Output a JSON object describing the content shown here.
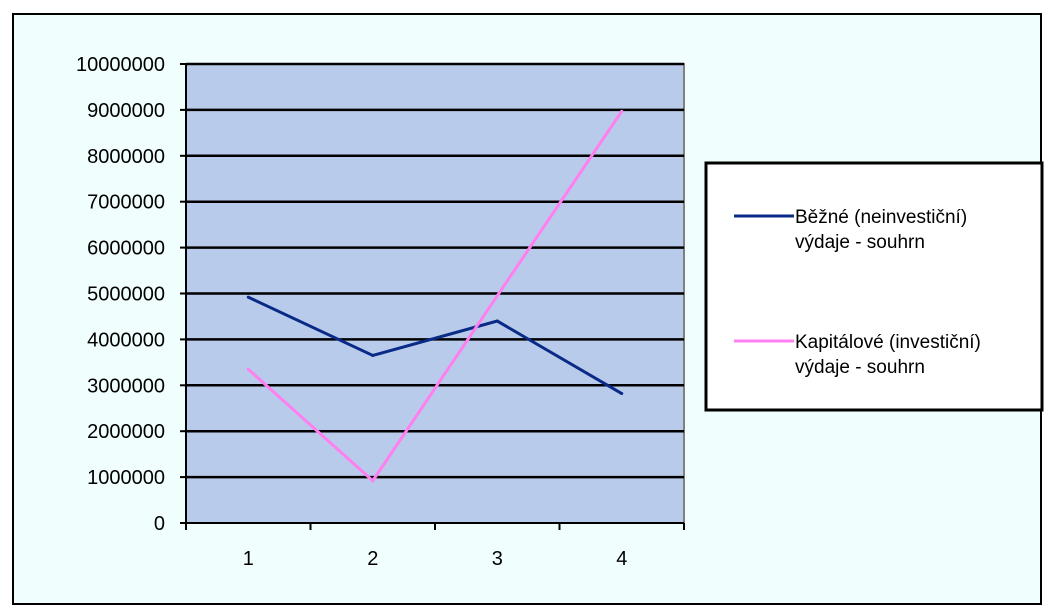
{
  "colors": {
    "chart_background": "#f1fefe",
    "plot_background": "#b9cbea",
    "gridline": "#000000",
    "series_1": "#0a2a88",
    "series_2": "#ff7ff0"
  },
  "chart_data": {
    "type": "line",
    "title": "",
    "xlabel": "",
    "ylabel": "",
    "categories": [
      "1",
      "2",
      "3",
      "4"
    ],
    "ylim": [
      0,
      10000000
    ],
    "y_ticks": [
      "0",
      "1000000",
      "2000000",
      "3000000",
      "4000000",
      "5000000",
      "6000000",
      "7000000",
      "8000000",
      "9000000",
      "10000000"
    ],
    "grid": true,
    "legend_position": "right",
    "series": [
      {
        "name_lines": [
          "Běžné (neinvestiční)",
          "výdaje - souhrn"
        ],
        "color": "#0a2a88",
        "values": [
          4920000,
          3650000,
          4400000,
          2820000
        ]
      },
      {
        "name_lines": [
          "Kapitálové (investiční)",
          "výdaje - souhrn"
        ],
        "color": "#ff7ff0",
        "values": [
          3350000,
          920000,
          4950000,
          8970000
        ]
      }
    ]
  }
}
